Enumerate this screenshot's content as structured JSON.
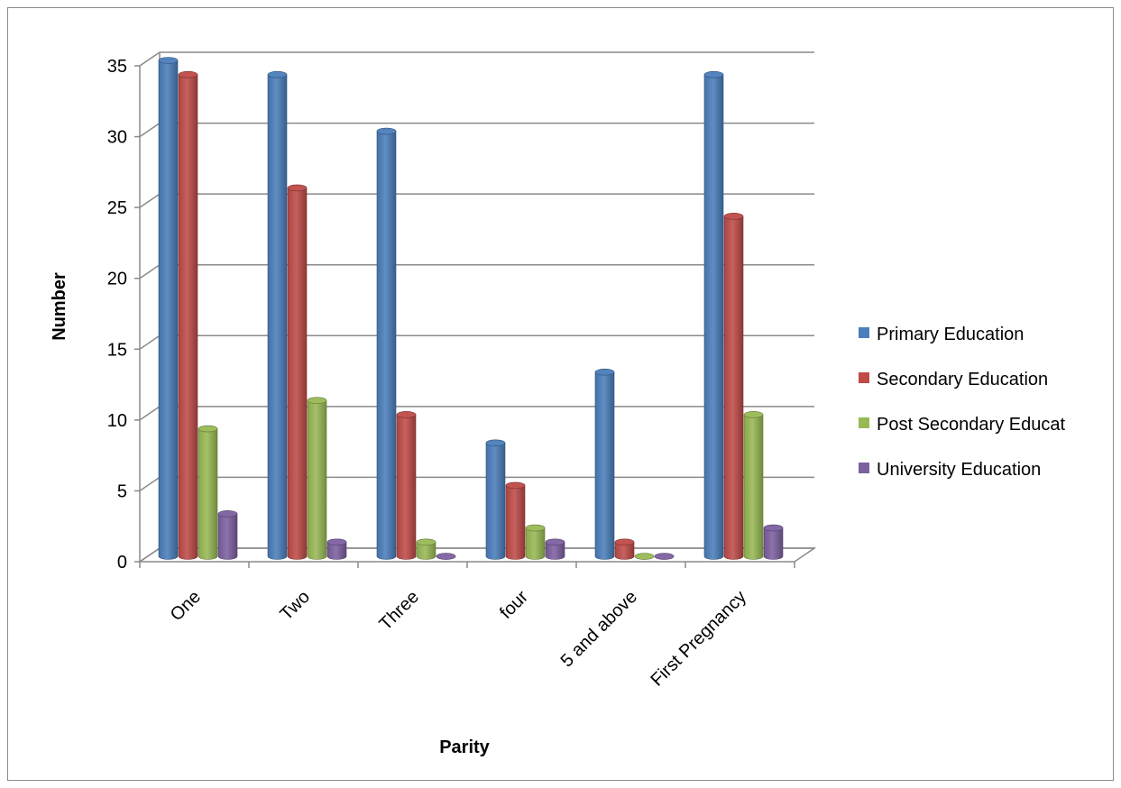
{
  "chart_data": {
    "type": "bar",
    "title": "",
    "xlabel": "Parity",
    "ylabel": "Number",
    "categories": [
      "One",
      "Two",
      "Three",
      "four",
      "5 and above",
      "First Pregnancy"
    ],
    "ylim": [
      0,
      35
    ],
    "yticks": [
      0,
      5,
      10,
      15,
      20,
      25,
      30,
      35
    ],
    "grid": true,
    "legend_position": "right",
    "series": [
      {
        "name": "Primary Education",
        "color": "#4a7ebb",
        "values": [
          35,
          34,
          30,
          8,
          13,
          34
        ]
      },
      {
        "name": "Secondary Education",
        "color": "#be4b48",
        "values": [
          34,
          26,
          10,
          5,
          1,
          24
        ]
      },
      {
        "name": "Post Secondary Educat",
        "color": "#98b954",
        "values": [
          9,
          11,
          1,
          2,
          0,
          10
        ]
      },
      {
        "name": "University Education",
        "color": "#7d60a0",
        "values": [
          3,
          1,
          0,
          1,
          0,
          2
        ]
      }
    ]
  }
}
